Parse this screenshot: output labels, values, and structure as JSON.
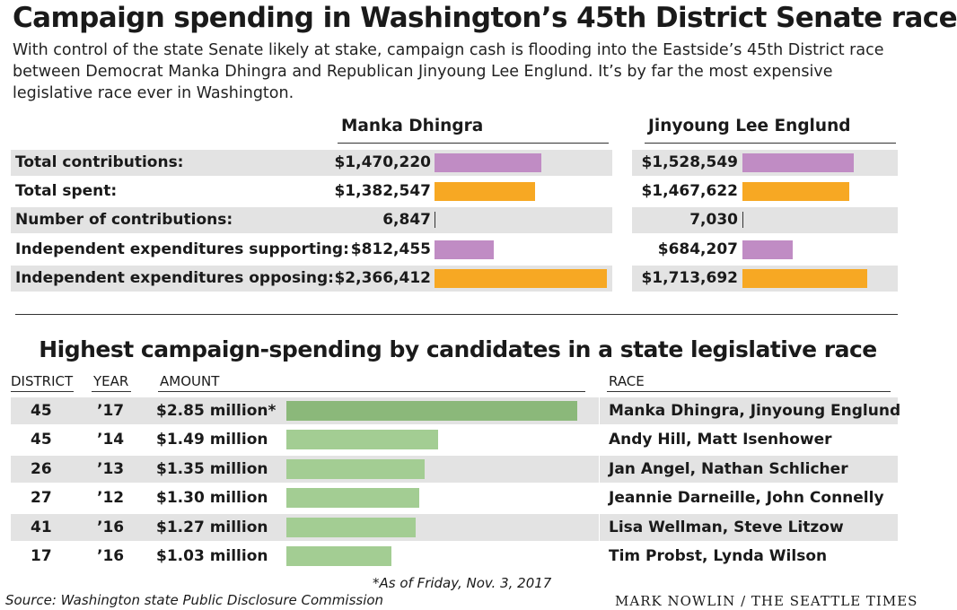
{
  "title": "Campaign spending in Washington’s 45th District Senate race",
  "subtitle": "With control of the state Senate likely at stake, campaign cash is flooding into the Eastside’s 45th District race between Democrat Manka Dhingra and Republican Jinyoung Lee Englund. It’s by far the most expensive legislative race ever in Washington.",
  "colors": {
    "purple": "#c08cc4",
    "orange": "#f7a823",
    "green_highlight": "#8bb87a",
    "green": "#a3cd93",
    "band": "#e3e3e3"
  },
  "chart_data": [
    {
      "type": "bar",
      "series": [
        {
          "name": "Manka Dhingra",
          "values": [
            1470220,
            1382547,
            6847,
            812455,
            2366412
          ],
          "labels": [
            "$1,470,220",
            "$1,382,547",
            "6,847",
            "$812,455",
            "$2,366,412"
          ]
        },
        {
          "name": "Jinyoung Lee Englund",
          "values": [
            1528549,
            1467622,
            7030,
            684207,
            1713692
          ],
          "labels": [
            "$1,528,549",
            "$1,467,622",
            "7,030",
            "$684,207",
            "$1,713,692"
          ]
        }
      ],
      "categories": [
        "Total contributions:",
        "Total spent:",
        "Number of contributions:",
        "Independent expenditures supporting:",
        "Independent expenditures opposing:"
      ],
      "bar_colors": [
        "purple",
        "orange",
        "none",
        "purple",
        "orange"
      ]
    },
    {
      "type": "bar",
      "title": "Highest campaign-spending by candidates in a state legislative race",
      "headers": {
        "district": "DISTRICT",
        "year": "YEAR",
        "amount": "AMOUNT",
        "race": "RACE"
      },
      "rows": [
        {
          "district": "45",
          "year": "’17",
          "amount": "$2.85 million*",
          "value": 2.85,
          "race": "Manka Dhingra, Jinyoung Englund"
        },
        {
          "district": "45",
          "year": "’14",
          "amount": "$1.49 million",
          "value": 1.49,
          "race": "Andy Hill, Matt Isenhower"
        },
        {
          "district": "26",
          "year": "’13",
          "amount": "$1.35 million",
          "value": 1.35,
          "race": "Jan Angel, Nathan Schlicher"
        },
        {
          "district": "27",
          "year": "’12",
          "amount": "$1.30 million",
          "value": 1.3,
          "race": "Jeannie Darneille, John Connelly"
        },
        {
          "district": "41",
          "year": "’16",
          "amount": "$1.27 million",
          "value": 1.27,
          "race": "Lisa Wellman, Steve Litzow"
        },
        {
          "district": "17",
          "year": "’16",
          "amount": "$1.03 million",
          "value": 1.03,
          "race": "Tim Probst, Lynda Wilson"
        }
      ]
    }
  ],
  "footnote": "*As of Friday, Nov. 3, 2017",
  "source": "Source: Washington state Public Disclosure Commission",
  "credit": "MARK NOWLIN / THE SEATTLE TIMES"
}
